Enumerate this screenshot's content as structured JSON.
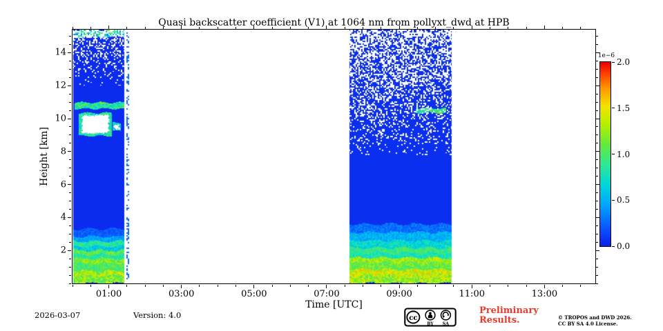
{
  "footer": {
    "date": "2026-03-07",
    "version": "Version: 4.0",
    "preliminary_line1": "Preliminary",
    "preliminary_line2": "Results.",
    "preliminary_color": "#e8392d",
    "copyright_line1": "© TROPOS and DWD 2026.",
    "copyright_line2": "CC BY SA 4.0 License.",
    "cc_logo": "cc",
    "cc_by": "BY",
    "cc_sa": "SA"
  },
  "chart_data": {
    "type": "heatmap",
    "title": "Quasi backscatter coefficient (V1) at 1064 nm from pollyxt_dwd at HPB",
    "xlabel": "Time [UTC]",
    "ylabel": "Height [km]",
    "x_range_hours": [
      0.0,
      14.4
    ],
    "y_range_km": [
      0.0,
      15.4
    ],
    "x_ticks": [
      {
        "hour": 1,
        "label": "01:00"
      },
      {
        "hour": 3,
        "label": "03:00"
      },
      {
        "hour": 5,
        "label": "05:00"
      },
      {
        "hour": 7,
        "label": "07:00"
      },
      {
        "hour": 9,
        "label": "09:00"
      },
      {
        "hour": 11,
        "label": "11:00"
      },
      {
        "hour": 13,
        "label": "13:00"
      }
    ],
    "x_minor_step_hours": 0.5,
    "y_ticks": [
      {
        "km": 2,
        "label": "2"
      },
      {
        "km": 4,
        "label": "4"
      },
      {
        "km": 6,
        "label": "6"
      },
      {
        "km": 8,
        "label": "8"
      },
      {
        "km": 10,
        "label": "10"
      },
      {
        "km": 12,
        "label": "12"
      },
      {
        "km": 14,
        "label": "14"
      }
    ],
    "y_minor_step_km": 0.5,
    "vmax": 2.0,
    "colorbar": {
      "exp_label": "1e−6",
      "ticks": [
        {
          "value": 0.0,
          "label": "0.0"
        },
        {
          "value": 0.5,
          "label": "0.5"
        },
        {
          "value": 1.0,
          "label": "1.0"
        },
        {
          "value": 1.5,
          "label": "1.5"
        },
        {
          "value": 2.0,
          "label": "2.0"
        }
      ]
    },
    "colormap_stops": [
      {
        "pos": 0.0,
        "color": "#0b1fe8"
      },
      {
        "pos": 0.1,
        "color": "#0a55ff"
      },
      {
        "pos": 0.22,
        "color": "#00a4ff"
      },
      {
        "pos": 0.33,
        "color": "#00d6da"
      },
      {
        "pos": 0.44,
        "color": "#2ce897"
      },
      {
        "pos": 0.55,
        "color": "#63e93e"
      },
      {
        "pos": 0.66,
        "color": "#b5ef00"
      },
      {
        "pos": 0.76,
        "color": "#f2e300"
      },
      {
        "pos": 0.86,
        "color": "#ff9500"
      },
      {
        "pos": 0.94,
        "color": "#ff3c00"
      },
      {
        "pos": 1.0,
        "color": "#e60000"
      }
    ],
    "segments": [
      {
        "name": "early-morning-measurement",
        "t_start": 0.02,
        "t_end": 1.43,
        "base_value": 0.05,
        "bands": [
          {
            "h0": 14.95,
            "h1": 15.4,
            "v": 0.7,
            "noise": 0.45
          },
          {
            "h0": 0.0,
            "h1": 0.45,
            "v": 1.15,
            "noise": 0.3
          },
          {
            "h0": 0.45,
            "h1": 0.75,
            "v": 1.3,
            "noise": 0.25
          },
          {
            "h0": 0.75,
            "h1": 1.2,
            "v": 1.0,
            "noise": 0.2
          },
          {
            "h0": 1.2,
            "h1": 1.5,
            "v": 1.15,
            "noise": 0.2
          },
          {
            "h0": 1.5,
            "h1": 1.75,
            "v": 0.85,
            "noise": 0.15
          },
          {
            "h0": 1.75,
            "h1": 2.0,
            "v": 1.05,
            "noise": 0.2
          },
          {
            "h0": 2.0,
            "h1": 2.25,
            "v": 0.6,
            "noise": 0.15
          },
          {
            "h0": 2.25,
            "h1": 2.55,
            "v": 0.85,
            "noise": 0.15
          },
          {
            "h0": 2.55,
            "h1": 2.85,
            "v": 0.45,
            "noise": 0.12
          },
          {
            "h0": 2.85,
            "h1": 3.3,
            "v": 0.22,
            "noise": 0.08
          }
        ],
        "clouds": [
          {
            "t0": 0.05,
            "t1": 1.42,
            "h0": 10.6,
            "h1": 10.98,
            "v": 0.85,
            "noise": 0.3
          },
          {
            "t0": 0.18,
            "t1": 1.08,
            "h0": 8.95,
            "h1": 10.35,
            "v": 0.8,
            "noise": 0.25
          },
          {
            "t0": 1.1,
            "t1": 1.33,
            "h0": 9.25,
            "h1": 9.75,
            "v": 0.7,
            "noise": 0.2
          }
        ],
        "white_patches": [
          {
            "t0": 0.27,
            "t1": 1.0,
            "h0": 9.12,
            "h1": 10.2
          },
          {
            "t0": 1.15,
            "t1": 1.29,
            "h0": 9.36,
            "h1": 9.64
          }
        ],
        "speckle": {
          "h_start": 12.0,
          "p_start": 0.03,
          "p_top": 0.5
        }
      },
      {
        "name": "dropout-strip",
        "t_start": 1.48,
        "t_end": 1.56,
        "base_value": 0.25,
        "bands": [],
        "clouds": [],
        "white_patches": [],
        "speckle": {
          "h_start": 0.0,
          "p_start": 0.65,
          "p_top": 0.65
        }
      },
      {
        "name": "late-morning-measurement",
        "t_start": 7.62,
        "t_end": 10.45,
        "base_value": 0.06,
        "bands": [
          {
            "h0": 0.0,
            "h1": 0.5,
            "v": 1.25,
            "noise": 0.3
          },
          {
            "h0": 0.5,
            "h1": 0.85,
            "v": 1.4,
            "noise": 0.25
          },
          {
            "h0": 0.85,
            "h1": 1.25,
            "v": 1.1,
            "noise": 0.2
          },
          {
            "h0": 1.25,
            "h1": 1.55,
            "v": 1.25,
            "noise": 0.2
          },
          {
            "h0": 1.55,
            "h1": 1.85,
            "v": 0.8,
            "noise": 0.15
          },
          {
            "h0": 1.85,
            "h1": 2.15,
            "v": 0.95,
            "noise": 0.18
          },
          {
            "h0": 2.15,
            "h1": 2.6,
            "v": 0.7,
            "noise": 0.15
          },
          {
            "h0": 2.6,
            "h1": 3.1,
            "v": 0.5,
            "noise": 0.12
          },
          {
            "h0": 3.1,
            "h1": 3.6,
            "v": 0.28,
            "noise": 0.1
          }
        ],
        "clouds": [
          {
            "t0": 9.45,
            "t1": 10.3,
            "h0": 10.35,
            "h1": 10.62,
            "v": 0.9,
            "noise": 0.35
          }
        ],
        "white_patches": [],
        "speckle": {
          "h_start": 7.8,
          "p_start": 0.06,
          "p_top": 0.6
        }
      }
    ]
  }
}
